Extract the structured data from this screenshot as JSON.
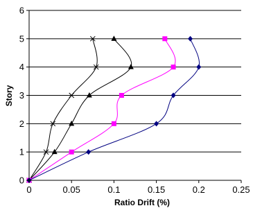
{
  "chart_data": {
    "type": "line",
    "title": "",
    "xlabel": "Ratio Drift (%)",
    "ylabel": "Story",
    "xlim": [
      0,
      0.25
    ],
    "ylim": [
      0,
      6
    ],
    "x_ticks": [
      "0",
      "0.05",
      "0.1",
      "0.15",
      "0.2",
      "0.25"
    ],
    "y_ticks": [
      "0",
      "1",
      "2",
      "3",
      "4",
      "5",
      "6"
    ],
    "grid": "horizontal",
    "series": [
      {
        "color": "#000000",
        "marker": "x",
        "x": [
          0,
          0.02,
          0.028,
          0.05,
          0.079,
          0.075
        ],
        "y": [
          0,
          1,
          2,
          3,
          4,
          5
        ]
      },
      {
        "color": "#000000",
        "marker": "triangle",
        "x": [
          0,
          0.03,
          0.05,
          0.071,
          0.12,
          0.1
        ],
        "y": [
          0,
          1,
          2,
          3,
          4,
          5
        ]
      },
      {
        "color": "#ff00ff",
        "marker": "square",
        "x": [
          0,
          0.05,
          0.1,
          0.109,
          0.17,
          0.16
        ],
        "y": [
          0,
          1,
          2,
          3,
          4,
          5
        ]
      },
      {
        "color": "#000080",
        "marker": "diamond",
        "x": [
          0,
          0.07,
          0.15,
          0.17,
          0.2,
          0.19
        ],
        "y": [
          0,
          1,
          2,
          3,
          4,
          5
        ]
      }
    ]
  }
}
